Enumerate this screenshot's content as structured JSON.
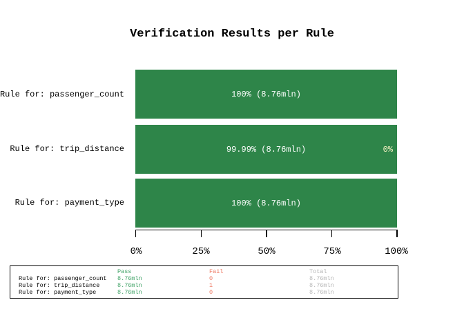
{
  "chart_data": {
    "type": "bar",
    "orientation": "horizontal",
    "stacked": true,
    "title": "Verification Results per Rule",
    "categories": [
      "Rule for: passenger_count",
      "Rule for: trip_distance",
      "Rule for: payment_type"
    ],
    "series": [
      {
        "name": "Pass",
        "values_pct": [
          100,
          99.99,
          100
        ],
        "counts": [
          "8.76mln",
          "8.76mln",
          "8.76mln"
        ]
      },
      {
        "name": "Fail",
        "values_pct": [
          0,
          0.01,
          0
        ],
        "counts": [
          "0",
          "1",
          "0"
        ]
      }
    ],
    "bar_labels": [
      {
        "pass": "100% (8.76mln)",
        "fail": ""
      },
      {
        "pass": "99.99% (8.76mln)",
        "fail": "0%"
      },
      {
        "pass": "100% (8.76mln)",
        "fail": ""
      }
    ],
    "x_ticks": [
      "0%",
      "25%",
      "50%",
      "75%",
      "100%"
    ],
    "xlim": [
      0,
      100
    ],
    "grid": false,
    "legend_position": "none",
    "colors": {
      "pass_bar": "#2e8549",
      "bar_value_label": "#ffffff",
      "fail_value_label": "#faf4c6",
      "axis": "#000000"
    }
  },
  "summary_table": {
    "headers": {
      "pass": "Pass",
      "fail": "Fail",
      "total": "Total"
    },
    "rows": [
      {
        "label": "Rule for: passenger_count",
        "pass": "8.76mln",
        "fail": "0",
        "total": "8.76mln"
      },
      {
        "label": "Rule for: trip_distance",
        "pass": "8.76mln",
        "fail": "1",
        "total": "8.76mln"
      },
      {
        "label": "Rule for: payment_type",
        "pass": "8.76mln",
        "fail": "0",
        "total": "8.76mln"
      }
    ],
    "colors": {
      "pass": "#3da164",
      "fail": "#ee7862",
      "total": "#b5b5b5",
      "label": "#000000"
    }
  }
}
